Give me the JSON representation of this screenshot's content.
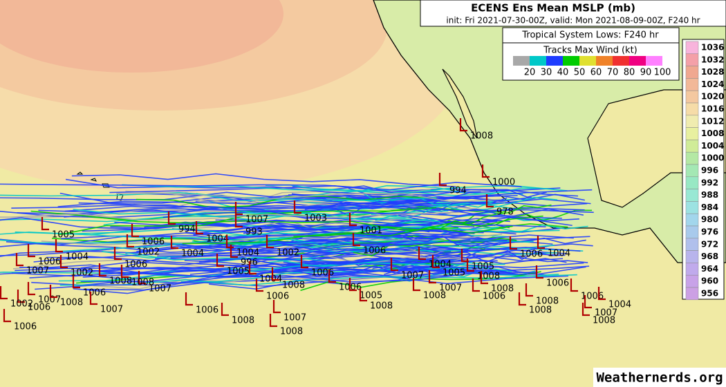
{
  "header": {
    "title": "ECENS Ens Mean MSLP (mb)",
    "subtitle": "init: Fri 2021-07-30-00Z, valid: Mon 2021-08-09-00Z, F240 hr"
  },
  "legend": {
    "title": "Tropical System Lows: F240 hr",
    "wind_title": "Tracks Max Wind (kt)",
    "wind_colors": [
      "#a8a8a8",
      "#00c8c8",
      "#1e3cff",
      "#00cc00",
      "#e0e030",
      "#f08228",
      "#f03030",
      "#f00082",
      "#ff80ff"
    ],
    "wind_labels": [
      20,
      30,
      40,
      50,
      60,
      70,
      80,
      90,
      100
    ]
  },
  "colorbar": {
    "labels": [
      1036,
      1032,
      1028,
      1024,
      1020,
      1016,
      1012,
      1008,
      1004,
      1000,
      996,
      992,
      988,
      984,
      980,
      976,
      972,
      968,
      964,
      960,
      956
    ],
    "colors": [
      "#f8b4dc",
      "#f4a0a8",
      "#f0a890",
      "#f2b898",
      "#f4c8a0",
      "#f6dca8",
      "#f0ecb0",
      "#e8f0a0",
      "#d0ec98",
      "#b4e8a4",
      "#a4e8b4",
      "#98e8c4",
      "#98e8d4",
      "#9ce2e2",
      "#a2d6ec",
      "#a8caec",
      "#b0c0ec",
      "#b8b4ec",
      "#c0aaec",
      "#c8a2e8",
      "#cca0e4"
    ]
  },
  "lows": [
    "994",
    "1008",
    "1000",
    "978",
    "1007",
    "1003",
    "993",
    "994",
    "1004",
    "1006",
    "1002",
    "1004",
    "1004",
    "996",
    "1005",
    "1004",
    "1008",
    "1006",
    "1006",
    "1006",
    "1005",
    "1008",
    "1007",
    "1004",
    "1005",
    "1005",
    "1008",
    "1007",
    "1008",
    "1008",
    "1006",
    "1006",
    "1008",
    "1008",
    "1006",
    "1004",
    "1007",
    "1008",
    "1004",
    "1006",
    "1007",
    "1008",
    "1008",
    "1006",
    "1006",
    "1006",
    "1007",
    "1007",
    "1006",
    "1006",
    "1007",
    "1006",
    "1004",
    "1002",
    "1008",
    "1006",
    "1007",
    "1008",
    "1002",
    "1005",
    "1002",
    "1001",
    "1008"
  ],
  "credit": "Weathernerds.org"
}
